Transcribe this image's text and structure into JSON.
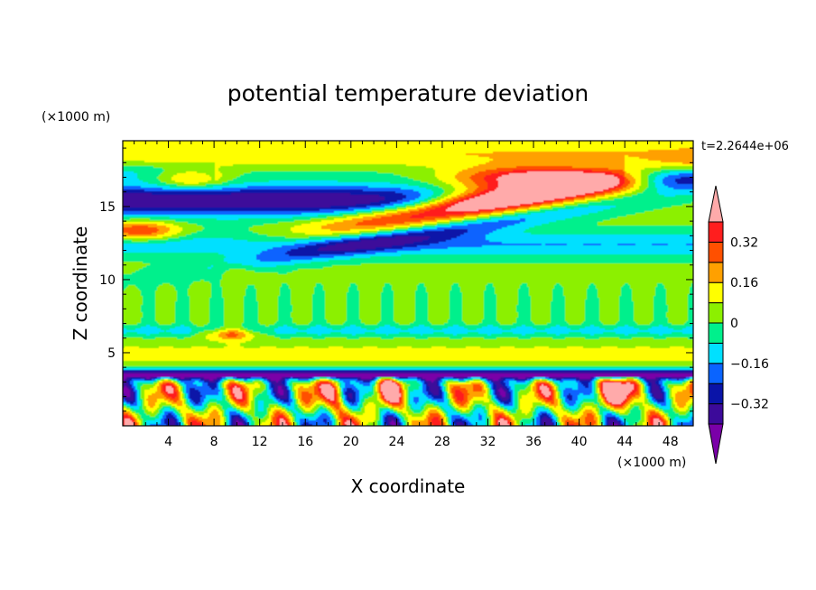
{
  "chart_data": {
    "type": "heatmap",
    "title": "potential temperature deviation",
    "xlabel": "X coordinate",
    "ylabel": "Z coordinate",
    "x_unit": "(×1000 m)",
    "y_unit": "(×1000 m)",
    "time_label": "t=2.2644e+06",
    "xlim": [
      0,
      50
    ],
    "ylim": [
      0,
      19.5
    ],
    "x_ticks": [
      4,
      8,
      12,
      16,
      20,
      24,
      28,
      32,
      36,
      40,
      44,
      48
    ],
    "y_ticks": [
      5,
      10,
      15
    ],
    "grid": false,
    "colorbar": {
      "placement": "right",
      "levels": [
        -0.4,
        -0.32,
        -0.24,
        -0.16,
        -0.08,
        0,
        0.08,
        0.16,
        0.24,
        0.32,
        0.4
      ],
      "labels": [
        "0.32",
        "0.16",
        "0",
        "−0.16",
        "−0.32"
      ],
      "label_values": [
        0.32,
        0.16,
        0,
        -0.16,
        -0.32
      ],
      "colors": [
        "#7a00a8",
        "#3c0a9a",
        "#0a14a8",
        "#0a64ff",
        "#00e0ff",
        "#00f08c",
        "#8cf000",
        "#ffff00",
        "#ffa000",
        "#ff5000",
        "#ff1e1e",
        "#ffaaaa"
      ]
    },
    "features": [
      {
        "name": "upper cold layer",
        "value": -0.36,
        "x": [
          0,
          27
        ],
        "z": [
          14.5,
          16.0
        ]
      },
      {
        "name": "upper cold band",
        "value": -0.2,
        "x": [
          10,
          40
        ],
        "z": [
          13.0,
          14.8
        ]
      },
      {
        "name": "warm tilted layer",
        "value": 0.45,
        "x": [
          13,
          50
        ],
        "z": [
          13.5,
          17.8
        ]
      },
      {
        "name": "right cold cap",
        "value": -0.36,
        "x": [
          44,
          50
        ],
        "z": [
          16.2,
          17.8
        ]
      },
      {
        "name": "mid-level cool band",
        "value": -0.1,
        "x": [
          0,
          50
        ],
        "z": [
          6.2,
          6.8
        ]
      },
      {
        "name": "warm patch",
        "value": 0.45,
        "x": [
          7,
          11
        ],
        "z": [
          5.9,
          6.6
        ]
      },
      {
        "name": "low-level cold layer",
        "value": -0.36,
        "x": [
          0,
          50
        ],
        "z": [
          3.2,
          3.8
        ]
      },
      {
        "name": "boundary layer warm plumes",
        "value": 0.3,
        "x": [
          0,
          50
        ],
        "z": [
          0,
          3.2
        ]
      }
    ]
  }
}
